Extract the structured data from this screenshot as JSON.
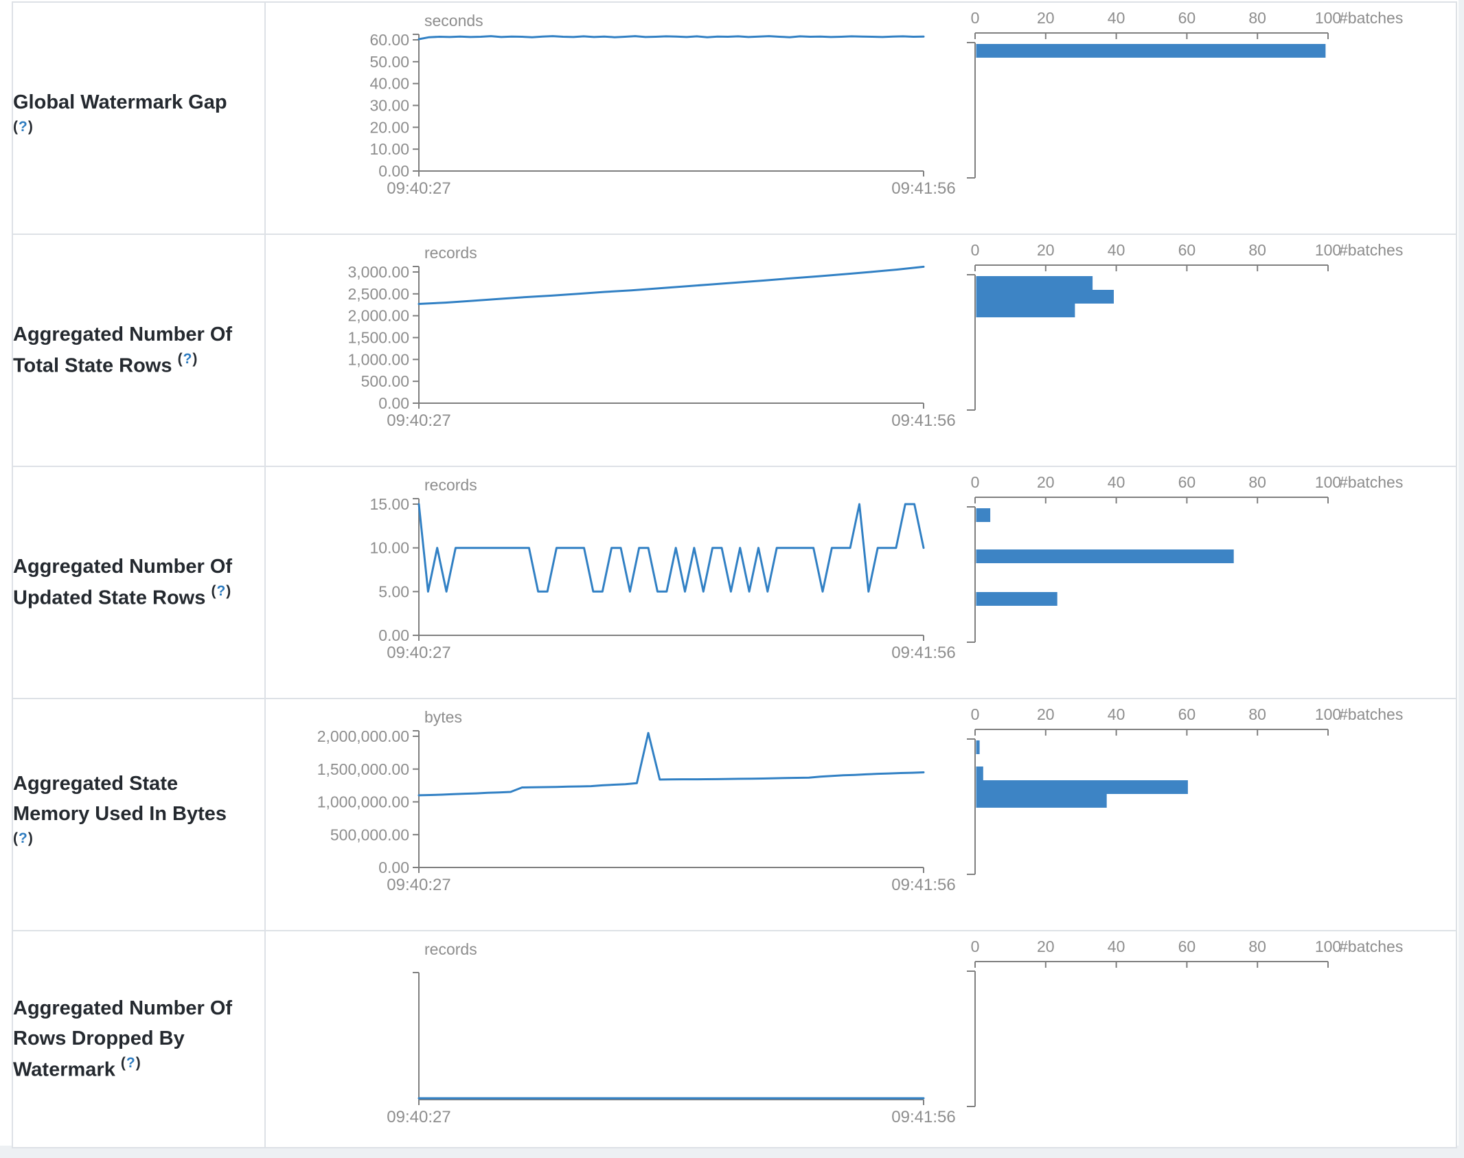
{
  "colors": {
    "line": "#3180c4",
    "bar": "#3d84c5",
    "axis": "#7f7f7f",
    "tick_text": "#8d8d8d",
    "label_text": "#24292f",
    "help_link": "#2e7cc0",
    "border": "#dde1e6",
    "page_bg": "#edf0f3"
  },
  "help": {
    "open": "(",
    "mark": "?",
    "close": ")"
  },
  "x_axis": {
    "start": "09:40:27",
    "end": "09:41:56"
  },
  "hist_axis": {
    "ticks": [
      {
        "v": 0,
        "t": "0"
      },
      {
        "v": 20,
        "t": "20"
      },
      {
        "v": 40,
        "t": "40"
      },
      {
        "v": 60,
        "t": "60"
      },
      {
        "v": 80,
        "t": "80"
      },
      {
        "v": 100,
        "t": "100"
      }
    ],
    "max": 100,
    "unit": "#batches"
  },
  "rows": [
    {
      "label": {
        "lines": [
          "Global Watermark Gap"
        ],
        "help_own_line": true
      },
      "timeline": {
        "unit": "seconds",
        "tick_max": 60,
        "y_ticks": [
          {
            "v": 60,
            "t": "60.00"
          },
          {
            "v": 50,
            "t": "50.00"
          },
          {
            "v": 40,
            "t": "40.00"
          },
          {
            "v": 30,
            "t": "30.00"
          },
          {
            "v": 20,
            "t": "20.00"
          },
          {
            "v": 10,
            "t": "10.00"
          },
          {
            "v": 0,
            "t": "0.00"
          }
        ],
        "values": [
          60.3,
          61.2,
          61.4,
          61.3,
          61.5,
          61.3,
          61.4,
          61.7,
          61.3,
          61.5,
          61.4,
          61.2,
          61.5,
          61.7,
          61.4,
          61.3,
          61.6,
          61.3,
          61.5,
          61.2,
          61.4,
          61.7,
          61.3,
          61.4,
          61.6,
          61.5,
          61.3,
          61.6,
          61.2,
          61.5,
          61.4,
          61.6,
          61.3,
          61.5,
          61.7,
          61.4,
          61.2,
          61.6,
          61.4,
          61.5,
          61.3,
          61.4,
          61.6,
          61.5,
          61.4,
          61.3,
          61.5,
          61.6,
          61.4,
          61.5
        ]
      },
      "histogram": {
        "bars": [
          {
            "value": 99,
            "offset": 2
          }
        ]
      }
    },
    {
      "label": {
        "lines": [
          "Aggregated Number Of",
          "Total State Rows"
        ],
        "help_own_line": false
      },
      "timeline": {
        "unit": "records",
        "tick_max": 3000,
        "y_ticks": [
          {
            "v": 3000,
            "t": "3,000.00"
          },
          {
            "v": 2500,
            "t": "2,500.00"
          },
          {
            "v": 2000,
            "t": "2,000.00"
          },
          {
            "v": 1500,
            "t": "1,500.00"
          },
          {
            "v": 1000,
            "t": "1,000.00"
          },
          {
            "v": 500,
            "t": "500.00"
          },
          {
            "v": 0,
            "t": "0.00"
          }
        ],
        "values": [
          2270,
          2300,
          2340,
          2385,
          2425,
          2460,
          2500,
          2545,
          2580,
          2625,
          2670,
          2715,
          2760,
          2805,
          2855,
          2900,
          2950,
          3000,
          3055,
          3120
        ]
      },
      "histogram": {
        "bars": [
          {
            "value": 33,
            "offset": 2
          },
          {
            "value": 39,
            "offset": 22
          },
          {
            "value": 28,
            "offset": 42
          }
        ]
      }
    },
    {
      "label": {
        "lines": [
          "Aggregated Number Of",
          "Updated State Rows"
        ],
        "help_own_line": false
      },
      "timeline": {
        "unit": "records",
        "tick_max": 15,
        "y_ticks": [
          {
            "v": 15,
            "t": "15.00"
          },
          {
            "v": 10,
            "t": "10.00"
          },
          {
            "v": 5,
            "t": "5.00"
          },
          {
            "v": 0,
            "t": "0.00"
          }
        ],
        "values": [
          15,
          5,
          10,
          5,
          10,
          10,
          10,
          10,
          10,
          10,
          10,
          10,
          10,
          5,
          5,
          10,
          10,
          10,
          10,
          5,
          5,
          10,
          10,
          5,
          10,
          10,
          5,
          5,
          10,
          5,
          10,
          5,
          10,
          10,
          5,
          10,
          5,
          10,
          5,
          10,
          10,
          10,
          10,
          10,
          5,
          10,
          10,
          10,
          15,
          5,
          10,
          10,
          10,
          15,
          15,
          10
        ]
      },
      "histogram": {
        "bars": [
          {
            "value": 4,
            "offset": 2
          },
          {
            "value": 73,
            "offset": 62
          },
          {
            "value": 23,
            "offset": 124
          }
        ]
      }
    },
    {
      "label": {
        "lines": [
          "Aggregated State",
          "Memory Used In Bytes"
        ],
        "help_own_line": true
      },
      "timeline": {
        "unit": "bytes",
        "tick_max": 2000000,
        "y_ticks": [
          {
            "v": 2000000,
            "t": "2,000,000.00"
          },
          {
            "v": 1500000,
            "t": "1,500,000.00"
          },
          {
            "v": 1000000,
            "t": "1,000,000.00"
          },
          {
            "v": 500000,
            "t": "500,000.00"
          },
          {
            "v": 0,
            "t": "0.00"
          }
        ],
        "values": [
          1100000,
          1105000,
          1110000,
          1118000,
          1125000,
          1130000,
          1138000,
          1145000,
          1152000,
          1220000,
          1222000,
          1225000,
          1228000,
          1232000,
          1236000,
          1240000,
          1252000,
          1262000,
          1270000,
          1285000,
          2050000,
          1340000,
          1342000,
          1344000,
          1345000,
          1346000,
          1347000,
          1350000,
          1352000,
          1354000,
          1356000,
          1360000,
          1363000,
          1366000,
          1370000,
          1385000,
          1395000,
          1405000,
          1412000,
          1420000,
          1428000,
          1434000,
          1440000,
          1444000,
          1450000
        ]
      },
      "histogram": {
        "bars": [
          {
            "value": 1,
            "offset": 2
          },
          {
            "value": 2,
            "offset": 40
          },
          {
            "value": 60,
            "offset": 60
          },
          {
            "value": 37,
            "offset": 80
          }
        ]
      }
    },
    {
      "label": {
        "lines": [
          "Aggregated Number Of",
          "Rows Dropped By",
          "Watermark"
        ],
        "help_own_line": false
      },
      "timeline": {
        "unit": "records",
        "tick_max": 1,
        "y_ticks": [],
        "values": [
          0,
          0
        ]
      },
      "histogram": {
        "bars": []
      }
    }
  ]
}
